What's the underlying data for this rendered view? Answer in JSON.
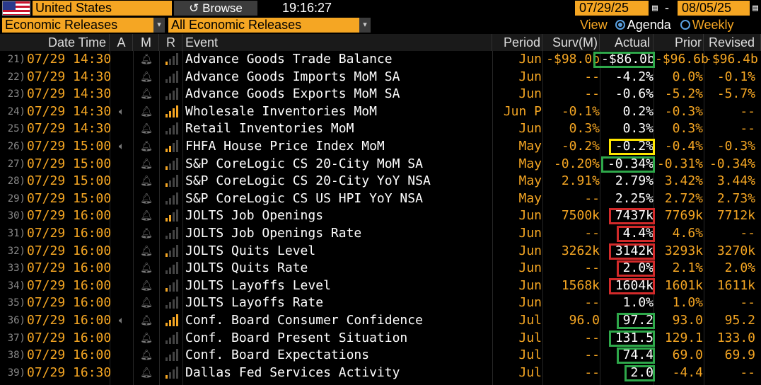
{
  "toolbar": {
    "country": "United States",
    "browse_label": "Browse",
    "browse_icon": "refresh-icon",
    "clock": "19:16:27",
    "date_from": "07/29/25",
    "date_to": "08/05/25",
    "dash": "-",
    "filter_category": "Economic Releases",
    "filter_releases": "All Economic Releases",
    "view_label": "View",
    "view_options": [
      "Agenda",
      "Weekly"
    ],
    "view_selected": "Agenda"
  },
  "columns": {
    "datetime": "Date Time",
    "a": "A",
    "m": "M",
    "r": "R",
    "event": "Event",
    "period": "Period",
    "surv": "Surv(M)",
    "actual": "Actual",
    "prior": "Prior",
    "revised": "Revised"
  },
  "colors": {
    "accent": "#f5a623",
    "box_green": "#2ea84a",
    "box_red": "#d22a2a",
    "box_yellow": "#ffe600"
  },
  "rows": [
    {
      "num": "21)",
      "dt": "07/29 14:30",
      "audio": false,
      "rel": "lo",
      "event": "Advance Goods Trade Balance",
      "period": "Jun",
      "surv": "-$98.0b",
      "actual": "-$86.0b",
      "prior": "-$96.6b",
      "revised": "-$96.4b",
      "box": "green"
    },
    {
      "num": "22)",
      "dt": "07/29 14:30",
      "audio": false,
      "rel": "none",
      "event": "Advance Goods Imports MoM SA",
      "period": "Jun",
      "surv": "--",
      "actual": "-4.2%",
      "prior": "0.0%",
      "revised": "-0.1%",
      "box": ""
    },
    {
      "num": "23)",
      "dt": "07/29 14:30",
      "audio": false,
      "rel": "none",
      "event": "Advance Goods Exports MoM SA",
      "period": "Jun",
      "surv": "--",
      "actual": "-0.6%",
      "prior": "-5.2%",
      "revised": "-5.7%",
      "box": ""
    },
    {
      "num": "24)",
      "dt": "07/29 14:30",
      "audio": true,
      "rel": "hi",
      "event": "Wholesale Inventories MoM",
      "period": "Jun P",
      "surv": "-0.1%",
      "actual": "0.2%",
      "prior": "-0.3%",
      "revised": "--",
      "box": ""
    },
    {
      "num": "25)",
      "dt": "07/29 14:30",
      "audio": false,
      "rel": "none",
      "event": "Retail Inventories MoM",
      "period": "Jun",
      "surv": "0.3%",
      "actual": "0.3%",
      "prior": "0.3%",
      "revised": "--",
      "box": ""
    },
    {
      "num": "26)",
      "dt": "07/29 15:00",
      "audio": true,
      "rel": "mid",
      "event": "FHFA House Price Index MoM",
      "period": "May",
      "surv": "-0.2%",
      "actual": "-0.2%",
      "prior": "-0.4%",
      "revised": "-0.3%",
      "box": "yellow"
    },
    {
      "num": "27)",
      "dt": "07/29 15:00",
      "audio": false,
      "rel": "lo",
      "event": "S&P CoreLogic CS 20-City MoM SA",
      "period": "May",
      "surv": "-0.20%",
      "actual": "-0.34%",
      "prior": "-0.31%",
      "revised": "-0.34%",
      "box": "green"
    },
    {
      "num": "28)",
      "dt": "07/29 15:00",
      "audio": false,
      "rel": "lo",
      "event": "S&P CoreLogic CS 20-City YoY NSA",
      "period": "May",
      "surv": "2.91%",
      "actual": "2.79%",
      "prior": "3.42%",
      "revised": "3.44%",
      "box": ""
    },
    {
      "num": "29)",
      "dt": "07/29 15:00",
      "audio": false,
      "rel": "none",
      "event": "S&P CoreLogic CS US HPI YoY NSA",
      "period": "May",
      "surv": "--",
      "actual": "2.25%",
      "prior": "2.72%",
      "revised": "2.73%",
      "box": ""
    },
    {
      "num": "30)",
      "dt": "07/29 16:00",
      "audio": false,
      "rel": "mid",
      "event": "JOLTS Job Openings",
      "period": "Jun",
      "surv": "7500k",
      "actual": "7437k",
      "prior": "7769k",
      "revised": "7712k",
      "box": "red"
    },
    {
      "num": "31)",
      "dt": "07/29 16:00",
      "audio": false,
      "rel": "none",
      "event": "JOLTS Job Openings Rate",
      "period": "Jun",
      "surv": "--",
      "actual": "4.4%",
      "prior": "4.6%",
      "revised": "--",
      "box": "red"
    },
    {
      "num": "32)",
      "dt": "07/29 16:00",
      "audio": false,
      "rel": "lo",
      "event": "JOLTS Quits Level",
      "period": "Jun",
      "surv": "3262k",
      "actual": "3142k",
      "prior": "3293k",
      "revised": "3270k",
      "box": "red"
    },
    {
      "num": "33)",
      "dt": "07/29 16:00",
      "audio": false,
      "rel": "none",
      "event": "JOLTS Quits Rate",
      "period": "Jun",
      "surv": "--",
      "actual": "2.0%",
      "prior": "2.1%",
      "revised": "2.0%",
      "box": "red"
    },
    {
      "num": "34)",
      "dt": "07/29 16:00",
      "audio": false,
      "rel": "lo",
      "event": "JOLTS Layoffs Level",
      "period": "Jun",
      "surv": "1568k",
      "actual": "1604k",
      "prior": "1601k",
      "revised": "1611k",
      "box": "red"
    },
    {
      "num": "35)",
      "dt": "07/29 16:00",
      "audio": false,
      "rel": "none",
      "event": "JOLTS Layoffs Rate",
      "period": "Jun",
      "surv": "--",
      "actual": "1.0%",
      "prior": "1.0%",
      "revised": "--",
      "box": ""
    },
    {
      "num": "36)",
      "dt": "07/29 16:00",
      "audio": true,
      "rel": "hi",
      "event": "Conf. Board Consumer Confidence",
      "period": "Jul",
      "surv": "96.0",
      "actual": "97.2",
      "prior": "93.0",
      "revised": "95.2",
      "box": "green"
    },
    {
      "num": "37)",
      "dt": "07/29 16:00",
      "audio": false,
      "rel": "none",
      "event": "Conf. Board Present Situation",
      "period": "Jul",
      "surv": "--",
      "actual": "131.5",
      "prior": "129.1",
      "revised": "133.0",
      "box": "green"
    },
    {
      "num": "38)",
      "dt": "07/29 16:00",
      "audio": false,
      "rel": "none",
      "event": "Conf. Board Expectations",
      "period": "Jul",
      "surv": "--",
      "actual": "74.4",
      "prior": "69.0",
      "revised": "69.9",
      "box": "green"
    },
    {
      "num": "39)",
      "dt": "07/29 16:30",
      "audio": false,
      "rel": "lo",
      "event": "Dallas Fed Services Activity",
      "period": "Jul",
      "surv": "--",
      "actual": "2.0",
      "prior": "-4.4",
      "revised": "--",
      "box": "green"
    }
  ]
}
